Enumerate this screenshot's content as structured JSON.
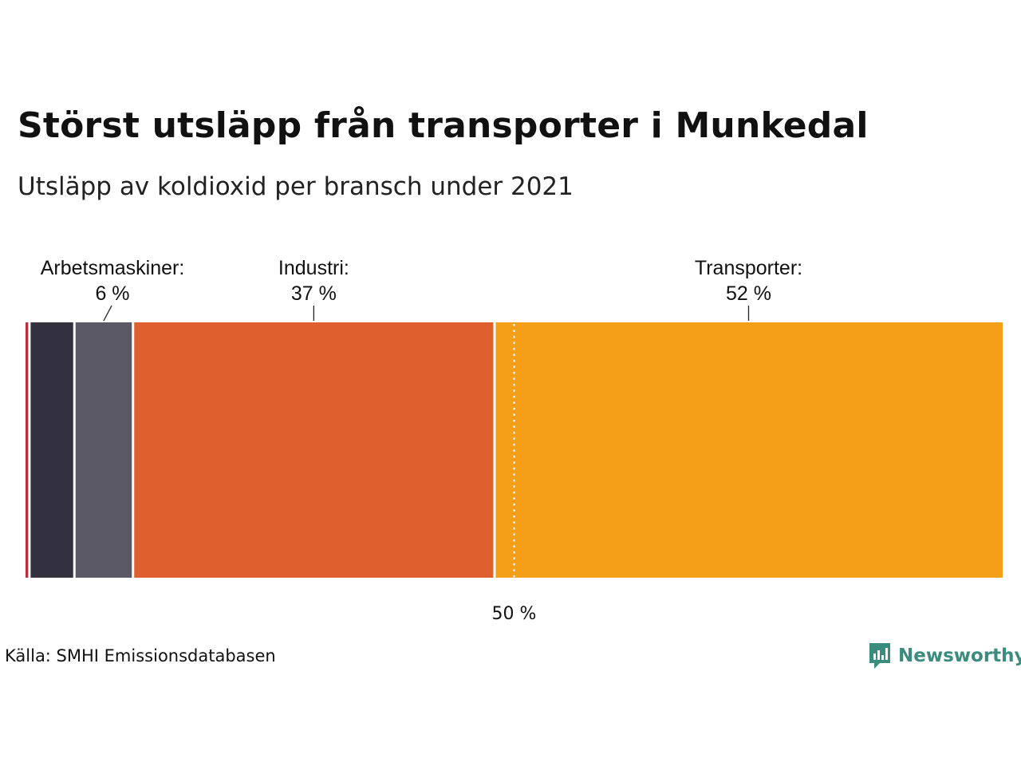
{
  "chart_data": {
    "type": "bar",
    "orientation": "horizontal-stacked",
    "title": "Störst utsläpp från transporter i Munkedal",
    "subtitle": "Utsläpp av koldioxid per bransch under 2021",
    "xlim": [
      0,
      100
    ],
    "segments": [
      {
        "value": 0.4,
        "color": "#b5333f",
        "label": "",
        "value_label": ""
      },
      {
        "value": 4.6,
        "color": "#33313f",
        "label": "",
        "value_label": ""
      },
      {
        "value": 6,
        "color": "#5b5866",
        "label": "Arbetsmaskiner:",
        "value_label": "6 %"
      },
      {
        "value": 37,
        "color": "#e05f2e",
        "label": "Industri:",
        "value_label": "37 %"
      },
      {
        "value": 52,
        "color": "#f59f19",
        "label": "Transporter:",
        "value_label": "52 %"
      }
    ],
    "reference_line": {
      "value": 50,
      "label": "50 %"
    }
  },
  "source": "Källa: SMHI Emissionsdatabasen",
  "brand": {
    "name": "Newsworthy",
    "color": "#3a8c7e"
  }
}
